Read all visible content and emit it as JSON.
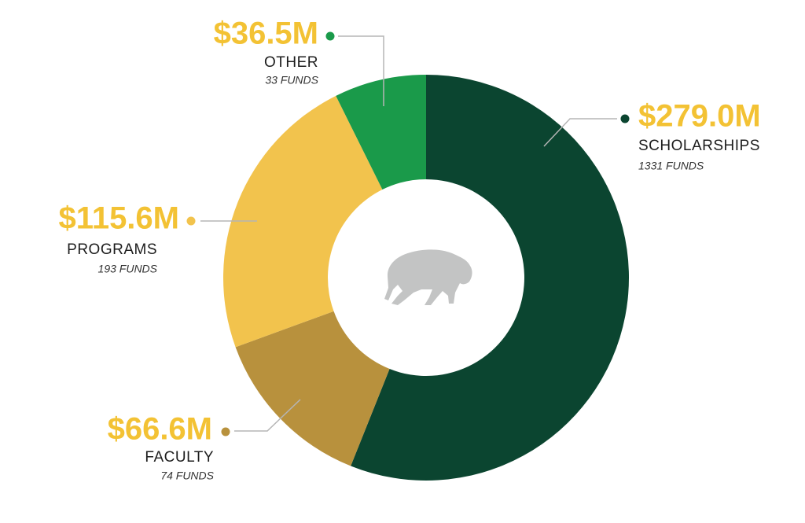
{
  "chart_data": {
    "type": "donut",
    "categories": [
      "SCHOLARSHIPS",
      "FACULTY",
      "PROGRAMS",
      "OTHER"
    ],
    "values": [
      279.0,
      66.6,
      115.6,
      36.5
    ],
    "value_labels": [
      "$279.0M",
      "$66.6M",
      "$115.6M",
      "$36.5M"
    ],
    "counts": [
      "1331 FUNDS",
      "74 FUNDS",
      "193 FUNDS",
      "33 FUNDS"
    ],
    "colors": [
      "#0b4530",
      "#b8913d",
      "#f2c34d",
      "#1a9a4a"
    ]
  }
}
